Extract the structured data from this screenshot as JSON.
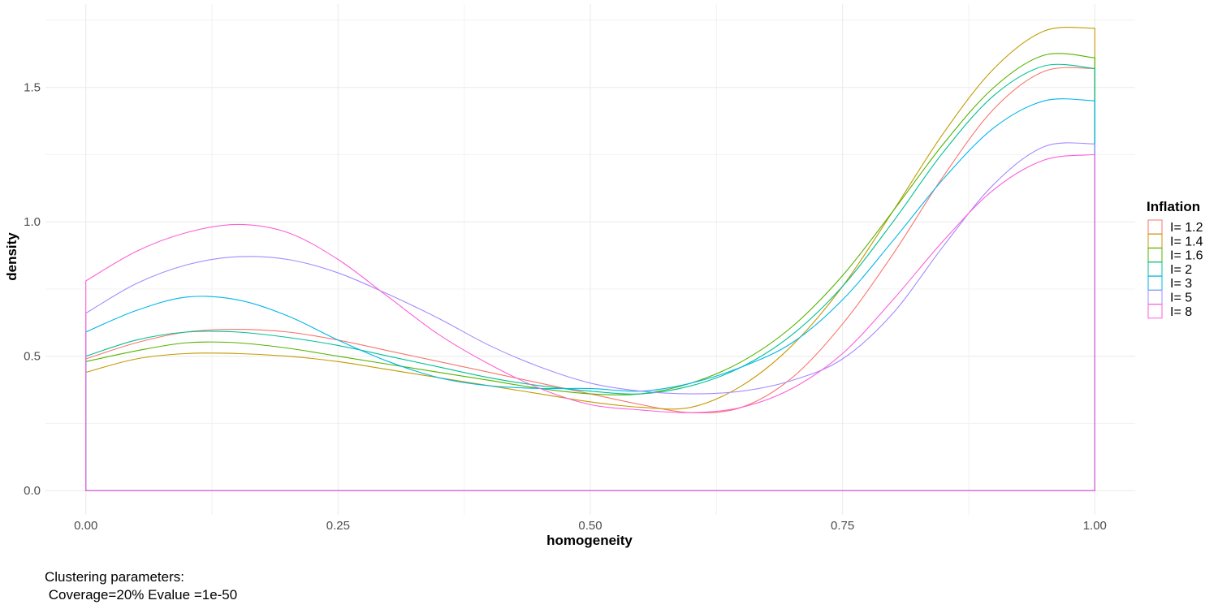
{
  "chart_data": {
    "type": "line",
    "xlabel": "homogeneity",
    "ylabel": "density",
    "xlim": [
      -0.04,
      1.04
    ],
    "ylim": [
      -0.09,
      1.81
    ],
    "x_ticks": [
      0.0,
      0.25,
      0.5,
      0.75,
      1.0
    ],
    "x_tick_labels": [
      "0.00",
      "0.25",
      "0.50",
      "0.75",
      "1.00"
    ],
    "y_ticks": [
      0.0,
      0.5,
      1.0,
      1.5
    ],
    "y_tick_labels": [
      "0.0",
      "0.5",
      "1.0",
      "1.5"
    ],
    "grid": true,
    "legend": {
      "title": "Inflation",
      "position": "right"
    },
    "x": [
      0.0,
      0.05,
      0.1,
      0.15,
      0.2,
      0.25,
      0.3,
      0.35,
      0.4,
      0.45,
      0.5,
      0.55,
      0.6,
      0.65,
      0.7,
      0.75,
      0.8,
      0.85,
      0.9,
      0.95,
      1.0
    ],
    "series": [
      {
        "name": "I= 1.2",
        "color": "#F8766D",
        "values": [
          0.49,
          0.55,
          0.59,
          0.6,
          0.59,
          0.56,
          0.52,
          0.48,
          0.44,
          0.4,
          0.36,
          0.32,
          0.29,
          0.31,
          0.42,
          0.62,
          0.88,
          1.17,
          1.42,
          1.56,
          1.57
        ]
      },
      {
        "name": "I= 1.4",
        "color": "#C49A00",
        "values": [
          0.44,
          0.49,
          0.51,
          0.51,
          0.5,
          0.48,
          0.45,
          0.42,
          0.39,
          0.36,
          0.33,
          0.31,
          0.31,
          0.39,
          0.54,
          0.76,
          1.04,
          1.33,
          1.57,
          1.71,
          1.72
        ]
      },
      {
        "name": "I= 1.6",
        "color": "#53B400",
        "values": [
          0.48,
          0.52,
          0.55,
          0.55,
          0.53,
          0.5,
          0.47,
          0.44,
          0.41,
          0.38,
          0.36,
          0.36,
          0.4,
          0.48,
          0.61,
          0.8,
          1.04,
          1.29,
          1.5,
          1.62,
          1.61
        ]
      },
      {
        "name": "I= 2",
        "color": "#00C094",
        "values": [
          0.5,
          0.56,
          0.59,
          0.59,
          0.57,
          0.54,
          0.5,
          0.46,
          0.42,
          0.39,
          0.37,
          0.36,
          0.39,
          0.46,
          0.58,
          0.76,
          1.0,
          1.26,
          1.47,
          1.58,
          1.57
        ]
      },
      {
        "name": "I= 3",
        "color": "#00B6EB",
        "values": [
          0.59,
          0.67,
          0.72,
          0.71,
          0.65,
          0.56,
          0.48,
          0.42,
          0.39,
          0.38,
          0.38,
          0.37,
          0.4,
          0.46,
          0.55,
          0.71,
          0.93,
          1.16,
          1.35,
          1.45,
          1.45
        ]
      },
      {
        "name": "I= 5",
        "color": "#A58AFF",
        "values": [
          0.66,
          0.77,
          0.84,
          0.87,
          0.86,
          0.81,
          0.73,
          0.64,
          0.54,
          0.46,
          0.4,
          0.37,
          0.36,
          0.37,
          0.41,
          0.49,
          0.66,
          0.91,
          1.14,
          1.28,
          1.29
        ]
      },
      {
        "name": "I= 8",
        "color": "#FB61D7",
        "values": [
          0.78,
          0.89,
          0.96,
          0.99,
          0.96,
          0.86,
          0.72,
          0.58,
          0.47,
          0.38,
          0.32,
          0.3,
          0.29,
          0.31,
          0.38,
          0.51,
          0.71,
          0.93,
          1.12,
          1.23,
          1.25
        ]
      }
    ]
  },
  "caption": {
    "line1": "Clustering parameters:",
    "line2": " Coverage=20% Evalue =1e-50"
  }
}
